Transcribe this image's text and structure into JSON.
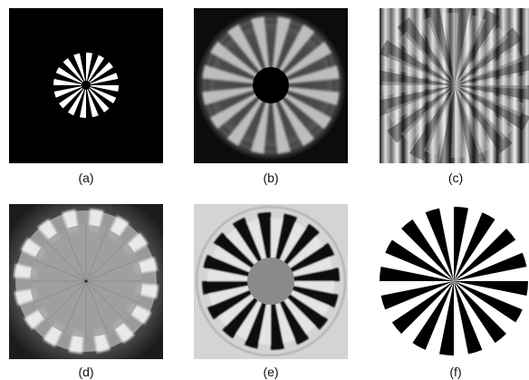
{
  "figure": {
    "panels": [
      {
        "id": "a",
        "caption": "(a)",
        "background": "#000000",
        "rendering": "small white 16-spoke Siemens star with black center on black field"
      },
      {
        "id": "b",
        "caption": "(b)",
        "background": "#0c0c0c",
        "rendering": "blurred grey star with dark center, soft halo and box-like artifacts"
      },
      {
        "id": "c",
        "caption": "(c)",
        "background": "#9a9a9a",
        "rendering": "star overlaid on vertical grey banding with rotated spoke artifacts"
      },
      {
        "id": "d",
        "caption": "(d)",
        "background": "#3a3a3a",
        "rendering": "low-contrast grey disk with bright wedge tips near the rim"
      },
      {
        "id": "e",
        "caption": "(e)",
        "background": "#d4d4d4",
        "rendering": "dark spokes with ringing on light grey, grey central disk"
      },
      {
        "id": "f",
        "caption": "(f)",
        "background": "#ffffff",
        "rendering": "sharp black 16-spoke Siemens star on white (ground truth)"
      }
    ],
    "spoke_count": 16
  }
}
